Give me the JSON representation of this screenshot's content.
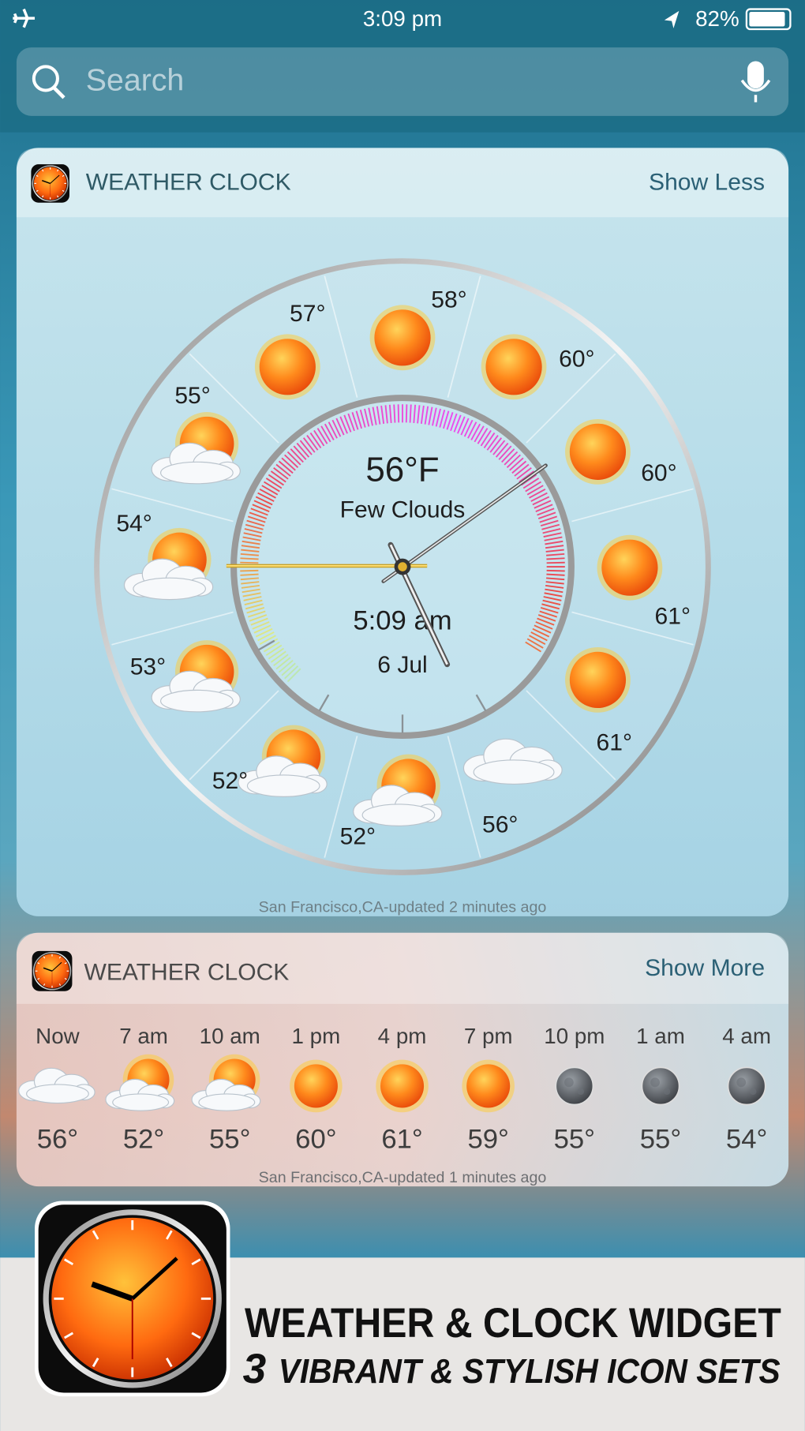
{
  "status_bar": {
    "time": "3:09 pm",
    "battery": "82%"
  },
  "search": {
    "placeholder": "Search"
  },
  "widget_1": {
    "title": "WEATHER CLOCK",
    "action": "Show Less",
    "dial_temperatures": [
      "58°",
      "60°",
      "60°",
      "61°",
      "61°",
      "56°",
      "52°",
      "52°",
      "53°",
      "54°",
      "55°",
      "57°"
    ],
    "current_temperature": "56°F",
    "condition": "Few Clouds",
    "time": "5:09 am",
    "date": "6 Jul",
    "footer": "San Francisco,CA-updated 2 minutes ago"
  },
  "widget_2": {
    "title": "WEATHER CLOCK",
    "action": "Show More",
    "forecast": [
      {
        "time": "Now",
        "temperature": "56°"
      },
      {
        "time": "7 am",
        "temperature": "52°"
      },
      {
        "time": "10 am",
        "temperature": "55°"
      },
      {
        "time": "1 pm",
        "temperature": "60°"
      },
      {
        "time": "4 pm",
        "temperature": "61°"
      },
      {
        "time": "7 pm",
        "temperature": "59°"
      },
      {
        "time": "10 pm",
        "temperature": "55°"
      },
      {
        "time": "1 am",
        "temperature": "55°"
      },
      {
        "time": "4 am",
        "temperature": "54°"
      }
    ],
    "footer": "San Francisco,CA-updated 1 minutes ago"
  },
  "banner": {
    "headline": "WEATHER & CLOCK WIDGET",
    "count": "3",
    "tagline": "VIBRANT & STYLISH ICON SETS"
  }
}
